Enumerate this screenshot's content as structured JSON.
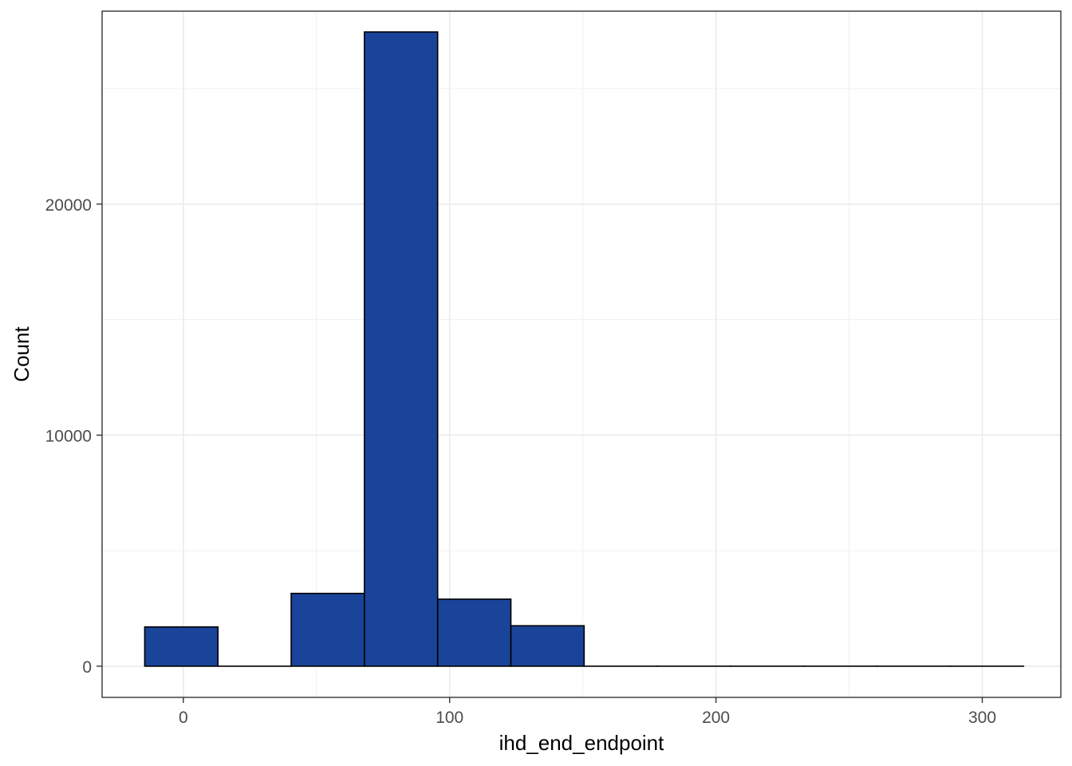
{
  "chart_data": {
    "type": "bar",
    "subtype": "histogram",
    "xlabel": "ihd_end_endpoint",
    "ylabel": "Count",
    "xlim": [
      -30.5,
      329.5
    ],
    "ylim": [
      -1350,
      28350
    ],
    "x_ticks": [
      0,
      100,
      200,
      300
    ],
    "x_tick_labels": [
      "0",
      "100",
      "200",
      "300"
    ],
    "y_ticks": [
      0,
      10000,
      20000
    ],
    "y_tick_labels": [
      "0",
      "10000",
      "20000"
    ],
    "x_minor_ticks": [
      50,
      150,
      250
    ],
    "y_minor_ticks": [
      5000,
      15000,
      25000
    ],
    "grid": true,
    "legend": "none",
    "bar_fill": "#1a4499",
    "bar_outline": "#000000",
    "bins": [
      {
        "x0": -14.5,
        "x1": 13.0,
        "count": 1700
      },
      {
        "x0": 13.0,
        "x1": 40.5,
        "count": 0
      },
      {
        "x0": 40.5,
        "x1": 68.0,
        "count": 3150
      },
      {
        "x0": 68.0,
        "x1": 95.5,
        "count": 27450
      },
      {
        "x0": 95.5,
        "x1": 123.0,
        "count": 2900
      },
      {
        "x0": 123.0,
        "x1": 150.5,
        "count": 1750
      },
      {
        "x0": 150.5,
        "x1": 178.0,
        "count": 0
      },
      {
        "x0": 178.0,
        "x1": 205.5,
        "count": 0
      },
      {
        "x0": 205.5,
        "x1": 233.0,
        "count": 0
      },
      {
        "x0": 233.0,
        "x1": 260.5,
        "count": 0
      },
      {
        "x0": 260.5,
        "x1": 288.0,
        "count": 0
      },
      {
        "x0": 288.0,
        "x1": 315.5,
        "count": 0
      }
    ]
  }
}
